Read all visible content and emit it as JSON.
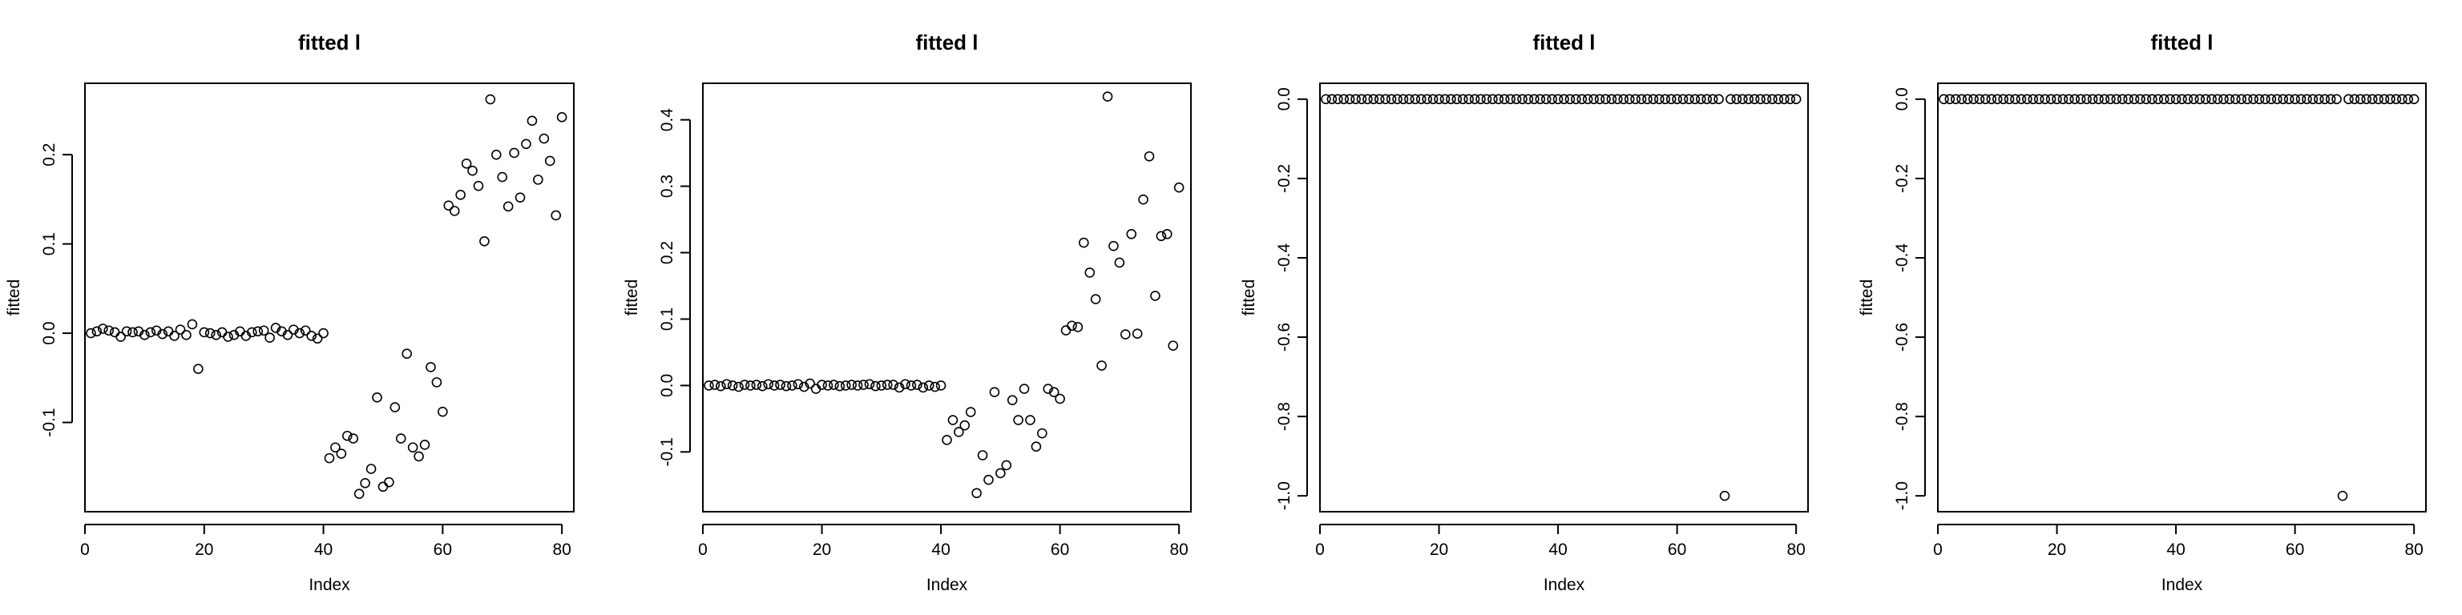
{
  "chart_data": [
    {
      "type": "scatter",
      "title": "fitted l",
      "xlabel": "Index",
      "ylabel": "fitted",
      "xlim": [
        0,
        82
      ],
      "ylim": [
        -0.2,
        0.28
      ],
      "xticks": [
        0,
        20,
        40,
        60,
        80
      ],
      "yticks": [
        -0.1,
        0.0,
        0.1,
        0.2
      ],
      "ytick_labels": [
        "-0.1",
        "0.0",
        "0.1",
        "0.2"
      ],
      "grid": false,
      "legend": "none",
      "marker": "open-circle",
      "color": "#000000",
      "series": [
        {
          "x": [
            1,
            2,
            3,
            4,
            5,
            6,
            7,
            8,
            9,
            10,
            11,
            12,
            13,
            14,
            15,
            16,
            17,
            18,
            19,
            20,
            21,
            22,
            23,
            24,
            25,
            26,
            27,
            28,
            29,
            30,
            31,
            32,
            33,
            34,
            35,
            36,
            37,
            38,
            39,
            40,
            41,
            42,
            43,
            44,
            45,
            46,
            47,
            48,
            49,
            50,
            51,
            52,
            53,
            54,
            55,
            56,
            57,
            58,
            59,
            60,
            61,
            62,
            63,
            64,
            65,
            66,
            67,
            68,
            69,
            70,
            71,
            72,
            73,
            74,
            75,
            76,
            77,
            78,
            79,
            80
          ],
          "y": [
            0.0,
            0.002,
            0.005,
            0.003,
            0.001,
            -0.004,
            0.002,
            0.001,
            0.002,
            -0.002,
            0.001,
            0.003,
            -0.001,
            0.002,
            -0.003,
            0.004,
            -0.002,
            0.01,
            -0.04,
            0.001,
            0.0,
            -0.002,
            0.001,
            -0.004,
            -0.002,
            0.002,
            -0.003,
            0.001,
            0.002,
            0.003,
            -0.005,
            0.006,
            0.002,
            -0.002,
            0.004,
            0.0,
            0.003,
            -0.003,
            -0.006,
            0.0,
            -0.14,
            -0.128,
            -0.135,
            -0.115,
            -0.118,
            -0.18,
            -0.168,
            -0.152,
            -0.072,
            -0.172,
            -0.167,
            -0.083,
            -0.118,
            -0.023,
            -0.128,
            -0.138,
            -0.125,
            -0.038,
            -0.055,
            -0.088,
            0.143,
            0.137,
            0.155,
            0.19,
            0.182,
            0.165,
            0.103,
            0.262,
            0.2,
            0.175,
            0.142,
            0.202,
            0.152,
            0.212,
            0.238,
            0.172,
            0.218,
            0.193,
            0.132,
            0.242
          ]
        }
      ]
    },
    {
      "type": "scatter",
      "title": "fitted l",
      "xlabel": "Index",
      "ylabel": "fitted",
      "xlim": [
        0,
        82
      ],
      "ylim": [
        -0.19,
        0.455
      ],
      "xticks": [
        0,
        20,
        40,
        60,
        80
      ],
      "yticks": [
        -0.1,
        0.0,
        0.1,
        0.2,
        0.3,
        0.4
      ],
      "ytick_labels": [
        "-0.1",
        "0.0",
        "0.1",
        "0.2",
        "0.3",
        "0.4"
      ],
      "grid": false,
      "legend": "none",
      "marker": "open-circle",
      "color": "#000000",
      "series": [
        {
          "x": [
            1,
            2,
            3,
            4,
            5,
            6,
            7,
            8,
            9,
            10,
            11,
            12,
            13,
            14,
            15,
            16,
            17,
            18,
            19,
            20,
            21,
            22,
            23,
            24,
            25,
            26,
            27,
            28,
            29,
            30,
            31,
            32,
            33,
            34,
            35,
            36,
            37,
            38,
            39,
            40,
            41,
            42,
            43,
            44,
            45,
            46,
            47,
            48,
            49,
            50,
            51,
            52,
            53,
            54,
            55,
            56,
            57,
            58,
            59,
            60,
            61,
            62,
            63,
            64,
            65,
            66,
            67,
            68,
            69,
            70,
            71,
            72,
            73,
            74,
            75,
            76,
            77,
            78,
            79,
            80
          ],
          "y": [
            0.0,
            0.001,
            -0.001,
            0.002,
            0.0,
            -0.002,
            0.001,
            0.0,
            0.001,
            -0.001,
            0.002,
            0.0,
            0.001,
            -0.001,
            0.0,
            0.002,
            -0.002,
            0.003,
            -0.005,
            0.001,
            0.0,
            0.001,
            -0.001,
            0.0,
            0.001,
            0.0,
            0.001,
            0.002,
            -0.001,
            0.0,
            0.001,
            0.001,
            -0.003,
            0.002,
            0.0,
            0.001,
            -0.003,
            0.0,
            -0.002,
            0.0,
            -0.082,
            -0.052,
            -0.07,
            -0.06,
            -0.04,
            -0.162,
            -0.105,
            -0.142,
            -0.01,
            -0.132,
            -0.12,
            -0.022,
            -0.052,
            -0.005,
            -0.052,
            -0.092,
            -0.072,
            -0.005,
            -0.01,
            -0.02,
            0.083,
            0.09,
            0.088,
            0.215,
            0.17,
            0.13,
            0.03,
            0.435,
            0.21,
            0.185,
            0.077,
            0.228,
            0.078,
            0.28,
            0.345,
            0.135,
            0.225,
            0.228,
            0.06,
            0.298
          ]
        }
      ]
    },
    {
      "type": "scatter",
      "title": "fitted l",
      "xlabel": "Index",
      "ylabel": "fitted",
      "xlim": [
        0,
        82
      ],
      "ylim": [
        -1.04,
        0.04
      ],
      "xticks": [
        0,
        20,
        40,
        60,
        80
      ],
      "yticks": [
        -1.0,
        -0.8,
        -0.6,
        -0.4,
        -0.2,
        0.0
      ],
      "ytick_labels": [
        "-1.0",
        "-0.8",
        "-0.6",
        "-0.4",
        "-0.2",
        "0.0"
      ],
      "grid": false,
      "legend": "none",
      "marker": "open-circle",
      "color": "#000000",
      "series": [
        {
          "x": [
            1,
            2,
            3,
            4,
            5,
            6,
            7,
            8,
            9,
            10,
            11,
            12,
            13,
            14,
            15,
            16,
            17,
            18,
            19,
            20,
            21,
            22,
            23,
            24,
            25,
            26,
            27,
            28,
            29,
            30,
            31,
            32,
            33,
            34,
            35,
            36,
            37,
            38,
            39,
            40,
            41,
            42,
            43,
            44,
            45,
            46,
            47,
            48,
            49,
            50,
            51,
            52,
            53,
            54,
            55,
            56,
            57,
            58,
            59,
            60,
            61,
            62,
            63,
            64,
            65,
            66,
            67,
            68,
            69,
            70,
            71,
            72,
            73,
            74,
            75,
            76,
            77,
            78,
            79,
            80
          ],
          "y": [
            0,
            0,
            0,
            0,
            0,
            0,
            0,
            0,
            0,
            0,
            0,
            0,
            0,
            0,
            0,
            0,
            0,
            0,
            0,
            0,
            0,
            0,
            0,
            0,
            0,
            0,
            0,
            0,
            0,
            0,
            0,
            0,
            0,
            0,
            0,
            0,
            0,
            0,
            0,
            0,
            0,
            0,
            0,
            0,
            0,
            0,
            0,
            0,
            0,
            0,
            0,
            0,
            0,
            0,
            0,
            0,
            0,
            0,
            0,
            0,
            0,
            0,
            0,
            0,
            0,
            0,
            0,
            -1.0,
            0,
            0,
            0,
            0,
            0,
            0,
            0,
            0,
            0,
            0,
            0,
            0
          ]
        }
      ]
    },
    {
      "type": "scatter",
      "title": "fitted l",
      "xlabel": "Index",
      "ylabel": "fitted",
      "xlim": [
        0,
        82
      ],
      "ylim": [
        -1.04,
        0.04
      ],
      "xticks": [
        0,
        20,
        40,
        60,
        80
      ],
      "yticks": [
        -1.0,
        -0.8,
        -0.6,
        -0.4,
        -0.2,
        0.0
      ],
      "ytick_labels": [
        "-1.0",
        "-0.8",
        "-0.6",
        "-0.4",
        "-0.2",
        "0.0"
      ],
      "grid": false,
      "legend": "none",
      "marker": "open-circle",
      "color": "#000000",
      "series": [
        {
          "x": [
            1,
            2,
            3,
            4,
            5,
            6,
            7,
            8,
            9,
            10,
            11,
            12,
            13,
            14,
            15,
            16,
            17,
            18,
            19,
            20,
            21,
            22,
            23,
            24,
            25,
            26,
            27,
            28,
            29,
            30,
            31,
            32,
            33,
            34,
            35,
            36,
            37,
            38,
            39,
            40,
            41,
            42,
            43,
            44,
            45,
            46,
            47,
            48,
            49,
            50,
            51,
            52,
            53,
            54,
            55,
            56,
            57,
            58,
            59,
            60,
            61,
            62,
            63,
            64,
            65,
            66,
            67,
            68,
            69,
            70,
            71,
            72,
            73,
            74,
            75,
            76,
            77,
            78,
            79,
            80
          ],
          "y": [
            0,
            0,
            0,
            0,
            0,
            0,
            0,
            0,
            0,
            0,
            0,
            0,
            0,
            0,
            0,
            0,
            0,
            0,
            0,
            0,
            0,
            0,
            0,
            0,
            0,
            0,
            0,
            0,
            0,
            0,
            0,
            0,
            0,
            0,
            0,
            0,
            0,
            0,
            0,
            0,
            0,
            0,
            0,
            0,
            0,
            0,
            0,
            0,
            0,
            0,
            0,
            0,
            0,
            0,
            0,
            0,
            0,
            0,
            0,
            0,
            0,
            0,
            0,
            0,
            0,
            0,
            0,
            -1.0,
            0,
            0,
            0,
            0,
            0,
            0,
            0,
            0,
            0,
            0,
            0,
            0
          ]
        }
      ]
    }
  ]
}
